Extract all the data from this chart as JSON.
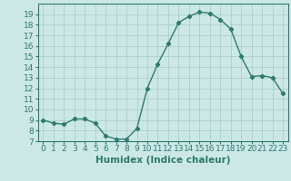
{
  "x": [
    0,
    1,
    2,
    3,
    4,
    5,
    6,
    7,
    8,
    9,
    10,
    11,
    12,
    13,
    14,
    15,
    16,
    17,
    18,
    19,
    20,
    21,
    22,
    23
  ],
  "y": [
    9,
    8.7,
    8.6,
    9.1,
    9.1,
    8.7,
    7.5,
    7.2,
    7.2,
    8.2,
    12.0,
    14.3,
    16.2,
    18.2,
    18.8,
    19.2,
    19.1,
    18.5,
    17.6,
    15.0,
    13.1,
    13.2,
    13.0,
    11.5
  ],
  "xlabel": "Humidex (Indice chaleur)",
  "xlim": [
    -0.5,
    23.5
  ],
  "ylim": [
    7,
    20
  ],
  "yticks": [
    7,
    8,
    9,
    10,
    11,
    12,
    13,
    14,
    15,
    16,
    17,
    18,
    19
  ],
  "xticks": [
    0,
    1,
    2,
    3,
    4,
    5,
    6,
    7,
    8,
    9,
    10,
    11,
    12,
    13,
    14,
    15,
    16,
    17,
    18,
    19,
    20,
    21,
    22,
    23
  ],
  "line_color": "#2d7a6e",
  "bg_color": "#cce8e6",
  "grid_color": "#aacfcc",
  "marker": "D",
  "markersize": 2.2,
  "linewidth": 1.0,
  "xlabel_fontsize": 7.5,
  "tick_fontsize": 6.5
}
